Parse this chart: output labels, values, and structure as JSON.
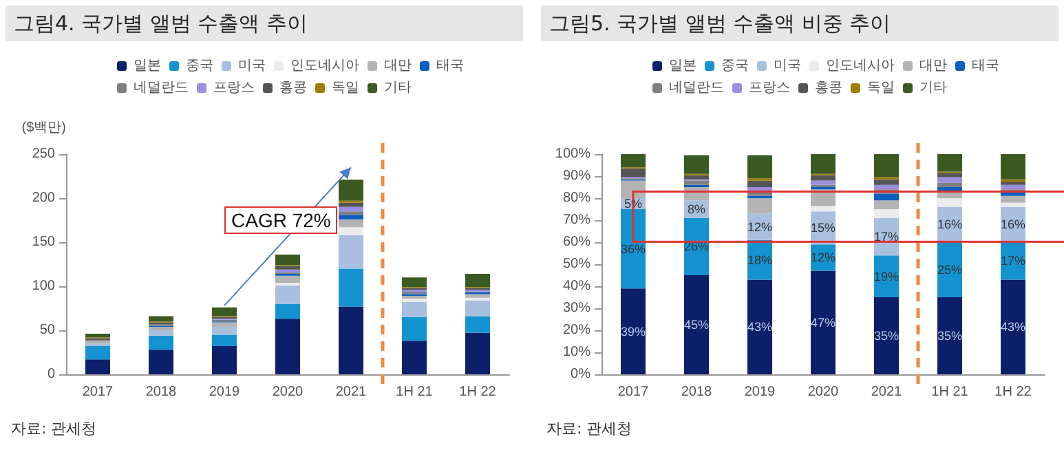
{
  "chart_data": [
    {
      "type": "bar",
      "stacked": true,
      "title": "그림4. 국가별 앨범 수출액 추이",
      "ylabel": "($백만)",
      "categories": [
        "2017",
        "2018",
        "2019",
        "2020",
        "2021",
        "1H 21",
        "1H 22"
      ],
      "ylim": [
        0,
        250
      ],
      "yticks": [
        0,
        50,
        100,
        150,
        200,
        250
      ],
      "grid": false,
      "legend": "top",
      "annotations": [
        "자료: 관세청",
        "CAGR 72%"
      ],
      "series": [
        {
          "name": "일본",
          "color": "#0b1f6b",
          "values": [
            17,
            28,
            32,
            63,
            77,
            38,
            47
          ]
        },
        {
          "name": "중국",
          "color": "#1593d0",
          "values": [
            15,
            16,
            13,
            17,
            43,
            27,
            19
          ]
        },
        {
          "name": "미국",
          "color": "#a9bfdf",
          "values": [
            3,
            6,
            9,
            21,
            38,
            17,
            18
          ]
        },
        {
          "name": "인도네시아",
          "color": "#ebebeb",
          "values": [
            0,
            0,
            0,
            3,
            9,
            4,
            3
          ]
        },
        {
          "name": "대만",
          "color": "#b3b3b3",
          "values": [
            3,
            4,
            5,
            8,
            9,
            3,
            4
          ]
        },
        {
          "name": "태국",
          "color": "#0a5fc2",
          "values": [
            0,
            1,
            1,
            2,
            5,
            2,
            2
          ]
        },
        {
          "name": "네덜란드",
          "color": "#7f7f7f",
          "values": [
            1,
            2,
            2,
            2,
            4,
            2,
            1
          ]
        },
        {
          "name": "프랑스",
          "color": "#9a8fe0",
          "values": [
            0,
            0,
            1,
            3,
            5,
            3,
            2
          ]
        },
        {
          "name": "홍콩",
          "color": "#555555",
          "values": [
            2,
            2,
            2,
            4,
            5,
            2,
            2
          ]
        },
        {
          "name": "독일",
          "color": "#a07c00",
          "values": [
            1,
            1,
            1,
            1,
            2,
            1,
            1
          ]
        },
        {
          "name": "기타",
          "color": "#3a5a22",
          "values": [
            4,
            6,
            10,
            12,
            24,
            11,
            15
          ]
        }
      ]
    },
    {
      "type": "bar",
      "stacked": true,
      "title": "그림5. 국가별 앨범 수출액 비중 추이",
      "categories": [
        "2017",
        "2018",
        "2019",
        "2020",
        "2021",
        "1H 21",
        "1H 22"
      ],
      "ylim": [
        0,
        100
      ],
      "yticks": [
        {
          "value": 0,
          "label": "0%"
        },
        {
          "value": 10,
          "label": "10%"
        },
        {
          "value": 20,
          "label": "20%"
        },
        {
          "value": 30,
          "label": "30%"
        },
        {
          "value": 40,
          "label": "40%"
        },
        {
          "value": 50,
          "label": "50%"
        },
        {
          "value": 60,
          "label": "60%"
        },
        {
          "value": 70,
          "label": "70%"
        },
        {
          "value": 80,
          "label": "80%"
        },
        {
          "value": 90,
          "label": "90%"
        },
        {
          "value": 100,
          "label": "100%"
        }
      ],
      "grid": false,
      "legend": "top",
      "annotations": [
        "자료: 관세청"
      ],
      "series": [
        {
          "name": "일본",
          "color": "#0b1f6b",
          "values": [
            39,
            45,
            43,
            47,
            35,
            35,
            43
          ],
          "value_labels": [
            "39%",
            "45%",
            "43%",
            "47%",
            "35%",
            "35%",
            "43%"
          ]
        },
        {
          "name": "중국",
          "color": "#1593d0",
          "values": [
            36,
            26,
            18,
            12,
            19,
            25,
            17
          ],
          "value_labels": [
            "36%",
            "26%",
            "18%",
            "12%",
            "19%",
            "25%",
            "17%"
          ]
        },
        {
          "name": "미국",
          "color": "#a9bfdf",
          "values": [
            5,
            8,
            12,
            15,
            17,
            16,
            16
          ],
          "value_labels": [
            "5%",
            "8%",
            "12%",
            "15%",
            "17%",
            "16%",
            "16%"
          ]
        },
        {
          "name": "인도네시아",
          "color": "#ebebeb",
          "values": [
            0,
            null,
            null,
            2.5,
            4,
            4,
            2
          ]
        },
        {
          "name": "대만",
          "color": "#b3b3b3",
          "values": [
            8,
            6,
            7,
            7.5,
            4,
            3,
            3
          ]
        },
        {
          "name": "태국",
          "color": "#0a5fc2",
          "values": [
            0.5,
            1,
            1,
            1,
            3,
            2,
            2
          ]
        },
        {
          "name": "네덜란드",
          "color": "#7f7f7f",
          "values": [
            0.5,
            2,
            2,
            1,
            2,
            2,
            1
          ]
        },
        {
          "name": "프랑스",
          "color": "#9a8fe0",
          "values": [
            0.5,
            0.5,
            2,
            2,
            2,
            2.5,
            2
          ]
        },
        {
          "name": "홍콩",
          "color": "#555555",
          "values": [
            4,
            2,
            3,
            2.5,
            2.5,
            2,
            1.5
          ]
        },
        {
          "name": "독일",
          "color": "#a07c00",
          "values": [
            0.5,
            0.5,
            1,
            0.5,
            1,
            0.5,
            1
          ]
        },
        {
          "name": "기타",
          "color": "#3a5a22",
          "values": [
            6,
            8.5,
            10.5,
            9,
            10.5,
            8,
            11.5
          ]
        }
      ]
    }
  ]
}
